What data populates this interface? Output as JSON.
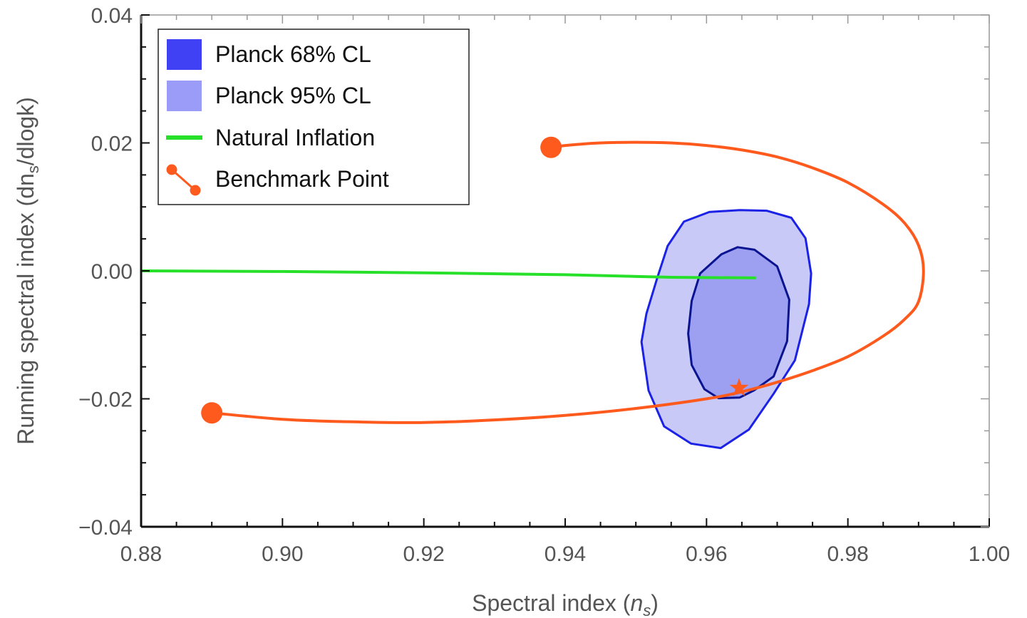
{
  "chart_data": {
    "type": "scatter",
    "xlabel": {
      "main": "Spectral index (",
      "var": "n",
      "sub": "s",
      "close": ")"
    },
    "ylabel": {
      "main": "Running spectral index (dn",
      "sub": "s",
      "rest": "/dlogk)"
    },
    "xlim": [
      0.88,
      1.0
    ],
    "ylim": [
      -0.04,
      0.04
    ],
    "xticks": [
      0.88,
      0.9,
      0.92,
      0.94,
      0.96,
      0.98,
      1.0
    ],
    "xtick_labels": [
      "0.88",
      "0.90",
      "0.92",
      "0.94",
      "0.96",
      "0.98",
      "1.00"
    ],
    "yticks": [
      -0.04,
      -0.02,
      0.0,
      0.02,
      0.04
    ],
    "ytick_labels": [
      "−0.04",
      "−0.02",
      "0.00",
      "0.02",
      "0.04"
    ],
    "grid": false,
    "legend_position": "top-left",
    "legend": [
      {
        "label": "Planck 68% CL",
        "kind": "fill-dark"
      },
      {
        "label": "Planck 95% CL",
        "kind": "fill-light"
      },
      {
        "label": "Natural Inflation",
        "kind": "line-green"
      },
      {
        "label": "Benchmark Point",
        "kind": "points-orange"
      }
    ],
    "colors": {
      "planck68_fill": "#9d9ff0",
      "planck68_edge": "#0a1490",
      "planck95_fill": "#c8c9f7",
      "planck95_edge": "#1b22e6",
      "legend68": "#4040f5",
      "legend95": "#9b9cf8",
      "natural": "#27e02a",
      "benchmark": "#ff5a1e",
      "axis": "#111111"
    },
    "series": [
      {
        "name": "Planck 95% CL",
        "kind": "region",
        "x": [
          0.9545,
          0.9568,
          0.9604,
          0.9647,
          0.9685,
          0.972,
          0.974,
          0.9748,
          0.9745,
          0.9725,
          0.9695,
          0.966,
          0.962,
          0.9578,
          0.954,
          0.9518,
          0.9508,
          0.9515,
          0.953
        ],
        "y": [
          0.0039,
          0.0077,
          0.0092,
          0.0095,
          0.0094,
          0.0083,
          0.0051,
          -0.0004,
          -0.0052,
          -0.014,
          -0.0192,
          -0.0248,
          -0.0277,
          -0.027,
          -0.0243,
          -0.0187,
          -0.0111,
          -0.0067,
          -0.0012
        ]
      },
      {
        "name": "Planck 68% CL",
        "kind": "region",
        "x": [
          0.9591,
          0.9621,
          0.9644,
          0.9668,
          0.97,
          0.9717,
          0.9714,
          0.9695,
          0.9667,
          0.9647,
          0.9617,
          0.9597,
          0.9579,
          0.9574,
          0.9579
        ],
        "y": [
          -0.0004,
          0.0026,
          0.0037,
          0.0033,
          0.0007,
          -0.0045,
          -0.011,
          -0.0165,
          -0.0187,
          -0.0198,
          -0.0199,
          -0.0185,
          -0.0147,
          -0.0098,
          -0.0047
        ]
      },
      {
        "name": "Natural Inflation",
        "kind": "line",
        "x": [
          0.88,
          0.9,
          0.92,
          0.94,
          0.955,
          0.967
        ],
        "y": [
          0.0,
          -0.0001,
          -0.0003,
          -0.0006,
          -0.001,
          -0.0011
        ]
      },
      {
        "name": "Benchmark Point",
        "kind": "curve",
        "x": [
          0.89,
          0.9,
          0.91,
          0.92,
          0.93,
          0.94,
          0.95,
          0.96,
          0.965,
          0.97,
          0.975,
          0.98,
          0.985,
          0.988,
          0.99,
          0.9907,
          0.99,
          0.988,
          0.985,
          0.98,
          0.975,
          0.97,
          0.965,
          0.96,
          0.955,
          0.95,
          0.945,
          0.94,
          0.938
        ],
        "y": [
          -0.0222,
          -0.0232,
          -0.0236,
          -0.0237,
          -0.0233,
          -0.0226,
          -0.0215,
          -0.02,
          -0.0189,
          -0.0174,
          -0.0156,
          -0.0134,
          -0.0102,
          -0.0076,
          -0.0048,
          0.0,
          0.004,
          0.0075,
          0.0104,
          0.0138,
          0.0161,
          0.0178,
          0.0189,
          0.0196,
          0.02,
          0.0201,
          0.02,
          0.0196,
          0.0193
        ]
      }
    ],
    "benchmark_endpoints": {
      "x": [
        0.89,
        0.938
      ],
      "y": [
        -0.0222,
        0.0193
      ]
    },
    "benchmark_star": {
      "x": 0.9646,
      "y": -0.0183
    }
  }
}
